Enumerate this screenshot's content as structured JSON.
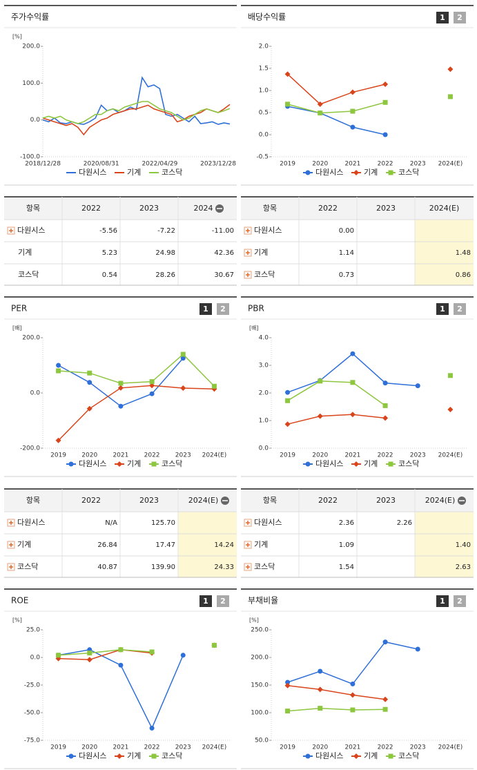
{
  "chart_data": [
    {
      "type": "line",
      "title": "주가수익률",
      "unit": "[%]",
      "categories": [
        "2018/12/28",
        null,
        null,
        null,
        null,
        null,
        null,
        null,
        null,
        null,
        "2020/08/31",
        null,
        null,
        null,
        null,
        null,
        null,
        null,
        null,
        null,
        "2022/04/29",
        null,
        null,
        null,
        null,
        null,
        null,
        null,
        null,
        null,
        "2023/12/28",
        null,
        null
      ],
      "ylim": [
        -100,
        200
      ],
      "yticks": [
        {
          "value": -100,
          "label": "-100.0"
        },
        {
          "value": 0,
          "label": "0.0"
        },
        {
          "value": 100,
          "label": "100.0"
        },
        {
          "value": 200,
          "label": "200.0"
        }
      ],
      "series": [
        {
          "name": "다원시스",
          "color": "#2e6fd8",
          "values": [
            0,
            -5,
            5,
            -8,
            -10,
            -5,
            -10,
            -12,
            -5,
            5,
            40,
            25,
            30,
            20,
            25,
            35,
            28,
            115,
            90,
            95,
            85,
            15,
            10,
            15,
            5,
            -5,
            10,
            -10,
            -8,
            -5,
            -12,
            -8,
            -11
          ]
        },
        {
          "name": "기계",
          "color": "#d9441a",
          "values": [
            5,
            0,
            -5,
            -10,
            -15,
            -10,
            -20,
            -40,
            -20,
            -10,
            0,
            5,
            15,
            20,
            25,
            30,
            30,
            35,
            40,
            30,
            25,
            20,
            15,
            -5,
            0,
            10,
            15,
            20,
            30,
            25,
            20,
            30,
            42
          ]
        },
        {
          "name": "코스닥",
          "color": "#8dc63f",
          "values": [
            5,
            10,
            5,
            10,
            0,
            -5,
            -10,
            -5,
            5,
            15,
            15,
            25,
            30,
            25,
            35,
            40,
            45,
            50,
            50,
            40,
            30,
            25,
            20,
            10,
            0,
            5,
            15,
            25,
            30,
            25,
            20,
            25,
            31
          ]
        }
      ]
    },
    {
      "type": "line",
      "title": "배당수익률",
      "buttons": [
        "1",
        "2"
      ],
      "categories": [
        "2019",
        "2020",
        "2021",
        "2022",
        "2023",
        "2024(E)"
      ],
      "ylim": [
        -0.5,
        2
      ],
      "yticks": [
        {
          "value": -0.5,
          "label": "-0.5"
        },
        {
          "value": 0,
          "label": "0.0"
        },
        {
          "value": 0.5,
          "label": "0.5"
        },
        {
          "value": 1,
          "label": "1.0"
        },
        {
          "value": 1.5,
          "label": "1.5"
        },
        {
          "value": 2,
          "label": "2.0"
        }
      ],
      "series": [
        {
          "name": "다원시스",
          "color": "#2e6fd8",
          "marker": "circle",
          "values": [
            0.64,
            0.49,
            0.17,
            0,
            null,
            null
          ]
        },
        {
          "name": "기계",
          "color": "#d9441a",
          "marker": "diamond",
          "values": [
            1.37,
            0.69,
            0.96,
            1.14,
            null,
            1.48
          ]
        },
        {
          "name": "코스닥",
          "color": "#8dc63f",
          "marker": "square",
          "values": [
            0.69,
            0.49,
            0.53,
            0.73,
            null,
            0.86
          ]
        }
      ]
    },
    {
      "type": "line",
      "title": "PER",
      "unit": "[배]",
      "buttons": [
        "1",
        "2"
      ],
      "categories": [
        "2019",
        "2020",
        "2021",
        "2022",
        "2023",
        "2024(E)"
      ],
      "ylim": [
        -200,
        200
      ],
      "yticks": [
        {
          "value": -200,
          "label": "-200.0"
        },
        {
          "value": 0,
          "label": "0.0"
        },
        {
          "value": 200,
          "label": "200.0"
        }
      ],
      "series": [
        {
          "name": "다원시스",
          "color": "#2e6fd8",
          "marker": "circle",
          "values": [
            100,
            38,
            -48,
            -3,
            125.7,
            null
          ]
        },
        {
          "name": "기계",
          "color": "#d9441a",
          "marker": "diamond",
          "values": [
            -172,
            -57,
            18,
            26.84,
            17.47,
            14.24
          ]
        },
        {
          "name": "코스닥",
          "color": "#8dc63f",
          "marker": "square",
          "values": [
            80,
            72,
            35,
            40.87,
            139.9,
            24.33
          ]
        }
      ]
    },
    {
      "type": "line",
      "title": "PBR",
      "unit": "[배]",
      "buttons": [
        "1",
        "2"
      ],
      "categories": [
        "2019",
        "2020",
        "2021",
        "2022",
        "2023",
        "2024(E)"
      ],
      "ylim": [
        0,
        4
      ],
      "yticks": [
        {
          "value": 0,
          "label": "0.0"
        },
        {
          "value": 1,
          "label": "1.0"
        },
        {
          "value": 2,
          "label": "2.0"
        },
        {
          "value": 3,
          "label": "3.0"
        },
        {
          "value": 4,
          "label": "4.0"
        }
      ],
      "series": [
        {
          "name": "다원시스",
          "color": "#2e6fd8",
          "marker": "circle",
          "values": [
            2.02,
            2.45,
            3.42,
            2.36,
            2.26,
            null
          ]
        },
        {
          "name": "기계",
          "color": "#d9441a",
          "marker": "diamond",
          "values": [
            0.87,
            1.16,
            1.22,
            1.09,
            null,
            1.4
          ]
        },
        {
          "name": "코스닥",
          "color": "#8dc63f",
          "marker": "square",
          "values": [
            1.72,
            2.43,
            2.38,
            1.54,
            null,
            2.63
          ]
        }
      ]
    },
    {
      "type": "line",
      "title": "ROE",
      "unit": "[%]",
      "buttons": [
        "1",
        "2"
      ],
      "categories": [
        "2019",
        "2020",
        "2021",
        "2022",
        "2023",
        "2024(E)"
      ],
      "ylim": [
        -75,
        25
      ],
      "yticks": [
        {
          "value": -75,
          "label": "-75.0"
        },
        {
          "value": -50,
          "label": "-50.0"
        },
        {
          "value": -25,
          "label": "-25.0"
        },
        {
          "value": 0,
          "label": "0.0"
        },
        {
          "value": 25,
          "label": "25.0"
        }
      ],
      "series": [
        {
          "name": "다원시스",
          "color": "#2e6fd8",
          "marker": "circle",
          "values": [
            2,
            7,
            -7,
            -64,
            2,
            null
          ]
        },
        {
          "name": "기계",
          "color": "#d9441a",
          "marker": "diamond",
          "values": [
            -1,
            -2,
            7,
            4,
            null,
            11
          ]
        },
        {
          "name": "코스닥",
          "color": "#8dc63f",
          "marker": "square",
          "values": [
            2,
            4,
            7,
            5,
            null,
            11
          ]
        }
      ]
    },
    {
      "type": "line",
      "title": "부채비율",
      "unit": "[%]",
      "buttons": [
        "1",
        "2"
      ],
      "categories": [
        "2019",
        "2020",
        "2021",
        "2022",
        "2023",
        "2024(E)"
      ],
      "ylim": [
        50,
        250
      ],
      "yticks": [
        {
          "value": 50,
          "label": "50.0"
        },
        {
          "value": 100,
          "label": "100.0"
        },
        {
          "value": 150,
          "label": "150.0"
        },
        {
          "value": 200,
          "label": "200.0"
        },
        {
          "value": 250,
          "label": "250.0"
        }
      ],
      "series": [
        {
          "name": "다원시스",
          "color": "#2e6fd8",
          "marker": "circle",
          "values": [
            155,
            175,
            152,
            228,
            215,
            null
          ]
        },
        {
          "name": "기계",
          "color": "#d9441a",
          "marker": "diamond",
          "values": [
            149,
            142,
            132,
            124,
            null,
            null
          ]
        },
        {
          "name": "코스닥",
          "color": "#8dc63f",
          "marker": "square",
          "values": [
            103,
            108,
            105,
            106,
            null,
            null
          ]
        }
      ]
    }
  ],
  "tables": [
    {
      "columns": [
        "항목",
        "2022",
        "2023",
        "2024"
      ],
      "rows": [
        {
          "name": "다원시스",
          "values": [
            "-5.56",
            "-7.22",
            "-11.00"
          ]
        },
        {
          "name": "기계",
          "values": [
            "5.23",
            "24.98",
            "42.36"
          ]
        },
        {
          "name": "코스닥",
          "values": [
            "0.54",
            "28.26",
            "30.67"
          ]
        }
      ]
    },
    {
      "columns": [
        "항목",
        "2022",
        "2023",
        "2024(E)"
      ],
      "rows": [
        {
          "name": "다원시스",
          "values": [
            "0.00",
            null,
            null
          ]
        },
        {
          "name": "기계",
          "values": [
            "1.14",
            null,
            "1.48"
          ]
        },
        {
          "name": "코스닥",
          "values": [
            "0.73",
            null,
            "0.86"
          ]
        }
      ]
    },
    {
      "columns": [
        "항목",
        "2022",
        "2023",
        "2024(E)"
      ],
      "rows": [
        {
          "name": "다원시스",
          "values": [
            "N/A",
            "125.70",
            null
          ]
        },
        {
          "name": "기계",
          "values": [
            "26.84",
            "17.47",
            "14.24"
          ]
        },
        {
          "name": "코스닥",
          "values": [
            "40.87",
            "139.90",
            "24.33"
          ]
        }
      ]
    },
    {
      "columns": [
        "항목",
        "2022",
        "2023",
        "2024(E)"
      ],
      "rows": [
        {
          "name": "다원시스",
          "values": [
            "2.36",
            "2.26",
            null
          ]
        },
        {
          "name": "기계",
          "values": [
            "1.09",
            null,
            "1.40"
          ]
        },
        {
          "name": "코스닥",
          "values": [
            "1.54",
            null,
            "2.63"
          ]
        }
      ]
    }
  ]
}
